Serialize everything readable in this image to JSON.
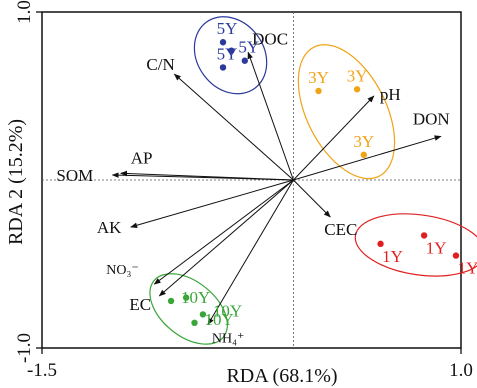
{
  "chart_data": {
    "type": "scatter",
    "title": "",
    "xlabel": "RDA (68.1%)",
    "ylabel": "RDA 2 (15.2%)",
    "xlim": [
      -1.5,
      1.0
    ],
    "ylim": [
      -1.0,
      1.0
    ],
    "x_ticks": [
      "-1.5",
      "1.0"
    ],
    "y_ticks": [
      "1.0",
      "-1.0"
    ],
    "zero_lines": true,
    "series": [
      {
        "name": "5Y",
        "color": "#2b3a9c",
        "points": [
          {
            "x": -0.42,
            "y": 0.82,
            "label": "5Y"
          },
          {
            "x": -0.29,
            "y": 0.71,
            "label": "5Y"
          },
          {
            "x": -0.42,
            "y": 0.67,
            "label": "5Y"
          },
          {
            "x": -0.37,
            "y": 0.77,
            "label": ""
          }
        ]
      },
      {
        "name": "3Y",
        "color": "#f0a418",
        "points": [
          {
            "x": 0.15,
            "y": 0.53,
            "label": "3Y"
          },
          {
            "x": 0.38,
            "y": 0.54,
            "label": "3Y"
          },
          {
            "x": 0.42,
            "y": 0.15,
            "label": "3Y"
          }
        ]
      },
      {
        "name": "1Y",
        "color": "#e02020",
        "points": [
          {
            "x": 0.52,
            "y": -0.38,
            "label": "1Y"
          },
          {
            "x": 0.78,
            "y": -0.33,
            "label": "1Y"
          },
          {
            "x": 0.97,
            "y": -0.45,
            "label": "1Y"
          }
        ]
      },
      {
        "name": "10Y",
        "color": "#3aa63a",
        "points": [
          {
            "x": -0.73,
            "y": -0.72,
            "label": "10Y"
          },
          {
            "x": -0.64,
            "y": -0.7,
            "label": ""
          },
          {
            "x": -0.54,
            "y": -0.8,
            "label": "10Y"
          },
          {
            "x": -0.59,
            "y": -0.85,
            "label": "10Y"
          }
        ]
      }
    ],
    "vectors": [
      {
        "name": "DOC",
        "x": -0.27,
        "y": 0.76,
        "label": "DOC"
      },
      {
        "name": "C/N",
        "x": -0.71,
        "y": 0.63,
        "label": "C/N"
      },
      {
        "name": "pH",
        "x": 0.48,
        "y": 0.5,
        "label": "pH"
      },
      {
        "name": "DON",
        "x": 0.88,
        "y": 0.26,
        "label": "DON"
      },
      {
        "name": "AP",
        "x": -1.03,
        "y": 0.04,
        "label": "AP"
      },
      {
        "name": "SOM",
        "x": -1.08,
        "y": 0.03,
        "label": "SOM"
      },
      {
        "name": "AK",
        "x": -0.97,
        "y": -0.28,
        "label": "AK"
      },
      {
        "name": "CEC",
        "x": 0.22,
        "y": -0.22,
        "label": "CEC"
      },
      {
        "name": "NO3-",
        "x": -0.83,
        "y": -0.62,
        "label": "NO₃⁻"
      },
      {
        "name": "EC",
        "x": -0.8,
        "y": -0.69,
        "label": "EC"
      },
      {
        "name": "NH4+",
        "x": -0.51,
        "y": -0.86,
        "label": "NH₄⁺"
      }
    ]
  }
}
